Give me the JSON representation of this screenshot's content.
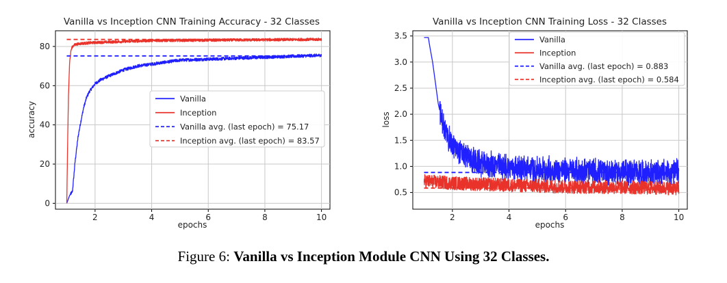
{
  "figure_caption": {
    "label": "Figure 6:",
    "title": "Vanilla vs Inception Module CNN Using 32 Classes."
  },
  "colors": {
    "vanilla": "#1f1fff",
    "inception": "#e8322a"
  },
  "chart_data": [
    {
      "type": "line",
      "title": "Vanilla vs Inception CNN Training Accuracy - 32 Classes",
      "xlabel": "epochs",
      "ylabel": "accuracy",
      "xlim": [
        0.6,
        10.3
      ],
      "ylim": [
        -3,
        88
      ],
      "xticks": [
        2,
        4,
        6,
        8,
        10
      ],
      "yticks": [
        0,
        20,
        40,
        60,
        80
      ],
      "grid": true,
      "legend_position": "center-right",
      "series": [
        {
          "name": "Vanilla",
          "style": "solid",
          "color": "#1f1fff",
          "x": [
            1.0,
            1.05,
            1.1,
            1.2,
            1.3,
            1.4,
            1.5,
            1.6,
            1.7,
            1.8,
            1.9,
            2.0,
            2.2,
            2.5,
            3.0,
            3.5,
            4.0,
            4.5,
            5.0,
            6.0,
            7.0,
            8.0,
            9.0,
            10.0
          ],
          "values": [
            0,
            2,
            4,
            6,
            22,
            34,
            42,
            49,
            54,
            57,
            59,
            61,
            63,
            65,
            68,
            70,
            71,
            72,
            73,
            73.5,
            74,
            74.5,
            75,
            75.5
          ]
        },
        {
          "name": "Inception",
          "style": "solid",
          "color": "#e8322a",
          "x": [
            1.0,
            1.03,
            1.06,
            1.1,
            1.15,
            1.2,
            1.3,
            1.5,
            2.0,
            3.0,
            4.0,
            6.0,
            8.0,
            10.0
          ],
          "values": [
            0,
            30,
            55,
            72,
            78,
            80,
            81,
            81.5,
            82,
            82.5,
            83,
            83.2,
            83.4,
            83.6
          ]
        },
        {
          "name": "Vanilla avg. (last epoch) = 75.17",
          "style": "dashed",
          "color": "#1f1fff",
          "x": [
            1.0,
            10.0
          ],
          "values": [
            75.17,
            75.17
          ]
        },
        {
          "name": "Inception avg. (last epoch) = 83.57",
          "style": "dashed",
          "color": "#e8322a",
          "x": [
            1.0,
            10.0
          ],
          "values": [
            83.57,
            83.57
          ]
        }
      ]
    },
    {
      "type": "line",
      "title": "Vanilla vs Inception CNN Training Loss - 32 Classes",
      "xlabel": "epochs",
      "ylabel": "loss",
      "xlim": [
        0.6,
        10.3
      ],
      "ylim": [
        0.18,
        3.6
      ],
      "xticks": [
        2,
        4,
        6,
        8,
        10
      ],
      "yticks": [
        0.5,
        1.0,
        1.5,
        2.0,
        2.5,
        3.0,
        3.5
      ],
      "grid": true,
      "legend_position": "top-right",
      "series": [
        {
          "name": "Vanilla",
          "style": "solid",
          "color": "#1f1fff",
          "x": [
            1.0,
            1.15,
            1.2,
            1.3,
            1.4,
            1.5,
            1.6,
            1.7,
            1.8,
            2.0,
            2.3,
            2.7,
            3.0,
            4.0,
            5.0,
            6.0,
            7.0,
            8.0,
            9.0,
            10.0
          ],
          "values": [
            3.47,
            3.47,
            3.3,
            3.0,
            2.6,
            2.2,
            1.95,
            1.75,
            1.6,
            1.4,
            1.25,
            1.12,
            1.05,
            0.98,
            0.94,
            0.92,
            0.9,
            0.89,
            0.88,
            0.88
          ]
        },
        {
          "name": "Inception",
          "style": "solid",
          "color": "#e8322a",
          "x": [
            1.0,
            2.0,
            4.0,
            6.0,
            8.0,
            10.0
          ],
          "values": [
            0.72,
            0.68,
            0.64,
            0.61,
            0.6,
            0.58
          ]
        },
        {
          "name": "Vanilla avg. (last epoch) = 0.883",
          "style": "dashed",
          "color": "#1f1fff",
          "x": [
            1.0,
            10.0
          ],
          "values": [
            0.883,
            0.883
          ]
        },
        {
          "name": "Inception avg. (last epoch) = 0.584",
          "style": "dashed",
          "color": "#e8322a",
          "x": [
            1.0,
            10.0
          ],
          "values": [
            0.584,
            0.584
          ]
        }
      ]
    }
  ]
}
